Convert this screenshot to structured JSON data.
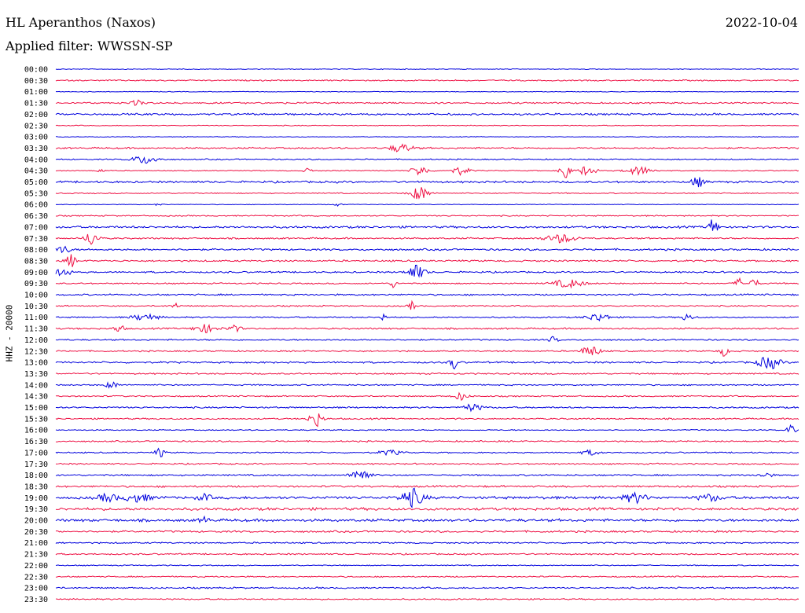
{
  "station": "HL Aperanthos (Naxos)",
  "date": "2022-10-04",
  "filter_label": "Applied filter: WWSSN-SP",
  "channel_label": "HHZ - 20000",
  "colors": {
    "trace_even": "#0000dd",
    "trace_odd": "#ee1144",
    "text": "#000000"
  },
  "chart_data": {
    "type": "line",
    "title": "HL Aperanthos (Naxos)",
    "subtitle": "Applied filter: WWSSN-SP",
    "ylabel": "HHZ - 20000",
    "grid": false,
    "ytick_labels": [
      "00:00",
      "00:30",
      "01:00",
      "01:30",
      "02:00",
      "02:30",
      "03:00",
      "03:30",
      "04:00",
      "04:30",
      "05:00",
      "05:30",
      "06:00",
      "06:30",
      "07:00",
      "07:30",
      "08:00",
      "08:30",
      "09:00",
      "09:30",
      "10:00",
      "10:30",
      "11:00",
      "11:30",
      "12:00",
      "12:30",
      "13:00",
      "13:30",
      "14:00",
      "14:30",
      "15:00",
      "15:30",
      "16:00",
      "16:30",
      "17:00",
      "17:30",
      "18:00",
      "18:30",
      "19:00",
      "19:30",
      "20:00",
      "20:30",
      "21:00",
      "21:30",
      "22:00",
      "22:30",
      "23:00",
      "23:30"
    ],
    "noise_level": [
      0.6,
      1.0,
      0.5,
      1.2,
      1.4,
      0.6,
      0.5,
      1.2,
      0.9,
      0.7,
      1.5,
      0.8,
      0.5,
      0.9,
      1.6,
      1.2,
      1.4,
      1.3,
      1.2,
      1.0,
      1.2,
      1.0,
      1.0,
      1.2,
      1.1,
      1.1,
      1.3,
      1.1,
      1.0,
      1.0,
      1.2,
      1.1,
      0.8,
      1.1,
      1.0,
      1.1,
      1.2,
      1.4,
      2.0,
      2.0,
      2.0,
      1.4,
      1.1,
      1.1,
      0.8,
      1.0,
      1.2,
      1.0
    ],
    "events": [
      {
        "row": 3,
        "x": 0.11,
        "amp": 3,
        "width": 0.006
      },
      {
        "row": 7,
        "x": 0.465,
        "amp": 5,
        "width": 0.01
      },
      {
        "row": 8,
        "x": 0.12,
        "amp": 5,
        "width": 0.012
      },
      {
        "row": 9,
        "x": 0.06,
        "amp": 3,
        "width": 0.003
      },
      {
        "row": 9,
        "x": 0.34,
        "amp": 3,
        "width": 0.004
      },
      {
        "row": 9,
        "x": 0.49,
        "amp": 6,
        "width": 0.008
      },
      {
        "row": 9,
        "x": 0.545,
        "amp": 5,
        "width": 0.008
      },
      {
        "row": 9,
        "x": 0.685,
        "amp": 14,
        "width": 0.004
      },
      {
        "row": 9,
        "x": 0.715,
        "amp": 6,
        "width": 0.008
      },
      {
        "row": 9,
        "x": 0.785,
        "amp": 5,
        "width": 0.012
      },
      {
        "row": 10,
        "x": 0.864,
        "amp": 6,
        "width": 0.006
      },
      {
        "row": 11,
        "x": 0.49,
        "amp": 9,
        "width": 0.008
      },
      {
        "row": 12,
        "x": 0.14,
        "amp": 3,
        "width": 0.003
      },
      {
        "row": 12,
        "x": 0.38,
        "amp": 3,
        "width": 0.003
      },
      {
        "row": 14,
        "x": 0.885,
        "amp": 11,
        "width": 0.004
      },
      {
        "row": 15,
        "x": 0.048,
        "amp": 9,
        "width": 0.006
      },
      {
        "row": 15,
        "x": 0.68,
        "amp": 5,
        "width": 0.014
      },
      {
        "row": 16,
        "x": 0.01,
        "amp": 5,
        "width": 0.006
      },
      {
        "row": 17,
        "x": 0.02,
        "amp": 9,
        "width": 0.004
      },
      {
        "row": 18,
        "x": 0.01,
        "amp": 6,
        "width": 0.006
      },
      {
        "row": 18,
        "x": 0.485,
        "amp": 9,
        "width": 0.008
      },
      {
        "row": 19,
        "x": 0.455,
        "amp": 5,
        "width": 0.003
      },
      {
        "row": 19,
        "x": 0.69,
        "amp": 5,
        "width": 0.014
      },
      {
        "row": 19,
        "x": 0.92,
        "amp": 6,
        "width": 0.004
      },
      {
        "row": 19,
        "x": 0.94,
        "amp": 6,
        "width": 0.004
      },
      {
        "row": 21,
        "x": 0.48,
        "amp": 6,
        "width": 0.003
      },
      {
        "row": 21,
        "x": 0.16,
        "amp": 4,
        "width": 0.003
      },
      {
        "row": 22,
        "x": 0.12,
        "amp": 4,
        "width": 0.012
      },
      {
        "row": 22,
        "x": 0.44,
        "amp": 5,
        "width": 0.003
      },
      {
        "row": 22,
        "x": 0.73,
        "amp": 5,
        "width": 0.01
      },
      {
        "row": 22,
        "x": 0.85,
        "amp": 4,
        "width": 0.006
      },
      {
        "row": 23,
        "x": 0.085,
        "amp": 6,
        "width": 0.004
      },
      {
        "row": 23,
        "x": 0.2,
        "amp": 5,
        "width": 0.01
      },
      {
        "row": 23,
        "x": 0.24,
        "amp": 4,
        "width": 0.006
      },
      {
        "row": 24,
        "x": 0.67,
        "amp": 4,
        "width": 0.004
      },
      {
        "row": 25,
        "x": 0.72,
        "amp": 7,
        "width": 0.008
      },
      {
        "row": 25,
        "x": 0.9,
        "amp": 6,
        "width": 0.004
      },
      {
        "row": 26,
        "x": 0.535,
        "amp": 10,
        "width": 0.003
      },
      {
        "row": 26,
        "x": 0.96,
        "amp": 8,
        "width": 0.01
      },
      {
        "row": 28,
        "x": 0.075,
        "amp": 4,
        "width": 0.006
      },
      {
        "row": 29,
        "x": 0.545,
        "amp": 5,
        "width": 0.006
      },
      {
        "row": 30,
        "x": 0.56,
        "amp": 4,
        "width": 0.01
      },
      {
        "row": 31,
        "x": 0.35,
        "amp": 10,
        "width": 0.006
      },
      {
        "row": 32,
        "x": 0.99,
        "amp": 7,
        "width": 0.004
      },
      {
        "row": 34,
        "x": 0.14,
        "amp": 6,
        "width": 0.004
      },
      {
        "row": 34,
        "x": 0.45,
        "amp": 3,
        "width": 0.01
      },
      {
        "row": 34,
        "x": 0.72,
        "amp": 3,
        "width": 0.008
      },
      {
        "row": 36,
        "x": 0.41,
        "amp": 9,
        "width": 0.008
      },
      {
        "row": 36,
        "x": 0.955,
        "amp": 3,
        "width": 0.006
      },
      {
        "row": 38,
        "x": 0.07,
        "amp": 5,
        "width": 0.008
      },
      {
        "row": 38,
        "x": 0.11,
        "amp": 5,
        "width": 0.012
      },
      {
        "row": 38,
        "x": 0.2,
        "amp": 4,
        "width": 0.006
      },
      {
        "row": 38,
        "x": 0.48,
        "amp": 11,
        "width": 0.01
      },
      {
        "row": 38,
        "x": 0.78,
        "amp": 6,
        "width": 0.01
      },
      {
        "row": 38,
        "x": 0.88,
        "amp": 4,
        "width": 0.01
      },
      {
        "row": 40,
        "x": 0.2,
        "amp": 4,
        "width": 0.004
      }
    ]
  }
}
